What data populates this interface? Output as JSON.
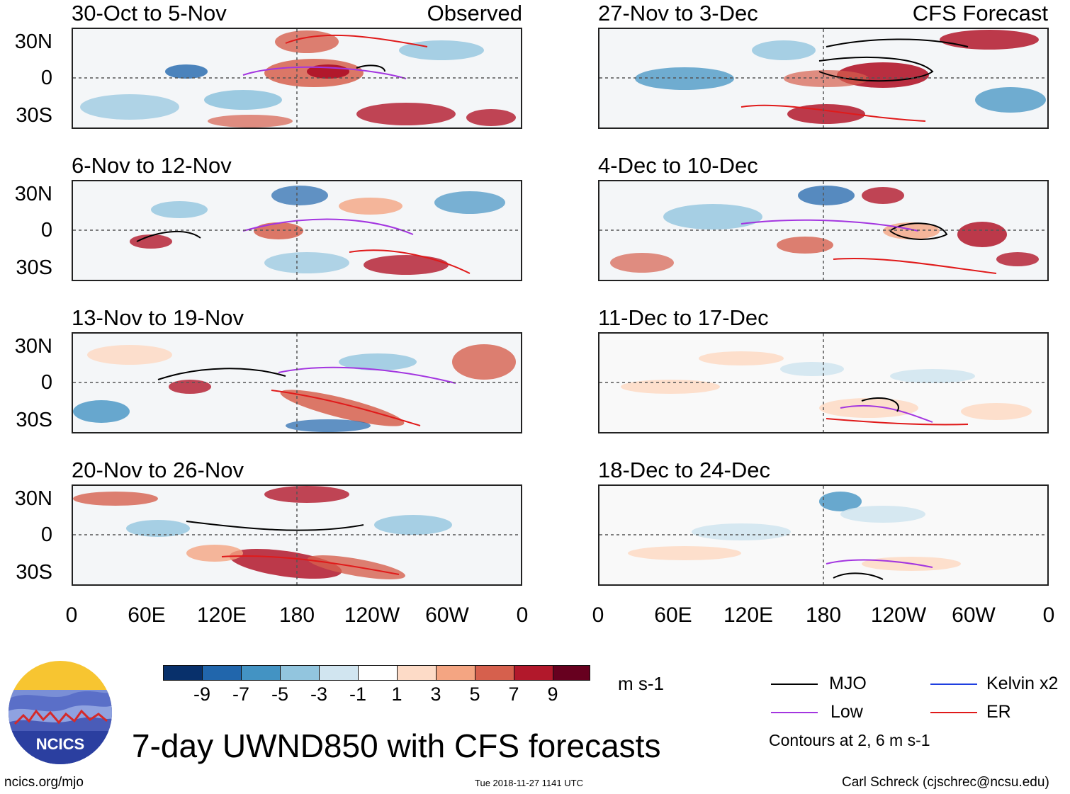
{
  "panels_left": [
    {
      "title": "30-Oct to 5-Nov",
      "tag": "Observed"
    },
    {
      "title": "6-Nov to 12-Nov",
      "tag": ""
    },
    {
      "title": "13-Nov to 19-Nov",
      "tag": ""
    },
    {
      "title": "20-Nov to 26-Nov",
      "tag": ""
    }
  ],
  "panels_right": [
    {
      "title": "27-Nov to 3-Dec",
      "tag": "CFS Forecast"
    },
    {
      "title": "4-Dec to 10-Dec",
      "tag": ""
    },
    {
      "title": "11-Dec to 17-Dec",
      "tag": ""
    },
    {
      "title": "18-Dec to 24-Dec",
      "tag": ""
    }
  ],
  "lat_labels": [
    "30N",
    "0",
    "30S"
  ],
  "lon_labels": [
    "0",
    "60E",
    "120E",
    "180",
    "120W",
    "60W",
    "0"
  ],
  "colorbar": {
    "colors": [
      "#08306b",
      "#2166ac",
      "#4393c3",
      "#92c5de",
      "#d1e5f0",
      "#ffffff",
      "#fddbc7",
      "#f4a582",
      "#d6604d",
      "#b2182b",
      "#67001f"
    ],
    "labels": [
      "-9",
      "-7",
      "-5",
      "-3",
      "-1",
      "1",
      "3",
      "5",
      "7",
      "9"
    ],
    "units": "m s-1"
  },
  "legend": {
    "items": [
      {
        "name": "MJO",
        "color": "#000000"
      },
      {
        "name": "Kelvin x2",
        "color": "#1f3fe0"
      },
      {
        "name": "Low",
        "color": "#a335e0"
      },
      {
        "name": "ER",
        "color": "#e01a1a"
      }
    ],
    "note": "Contours at 2, 6 m s-1"
  },
  "logo_text": "NCICS",
  "main_title": "7-day UWND850 with CFS forecasts",
  "footer": {
    "left": "ncics.org/mjo",
    "center": "Tue 2018-11-27 1141 UTC",
    "right": "Carl Schreck (cjschrec@ncsu.edu)"
  }
}
